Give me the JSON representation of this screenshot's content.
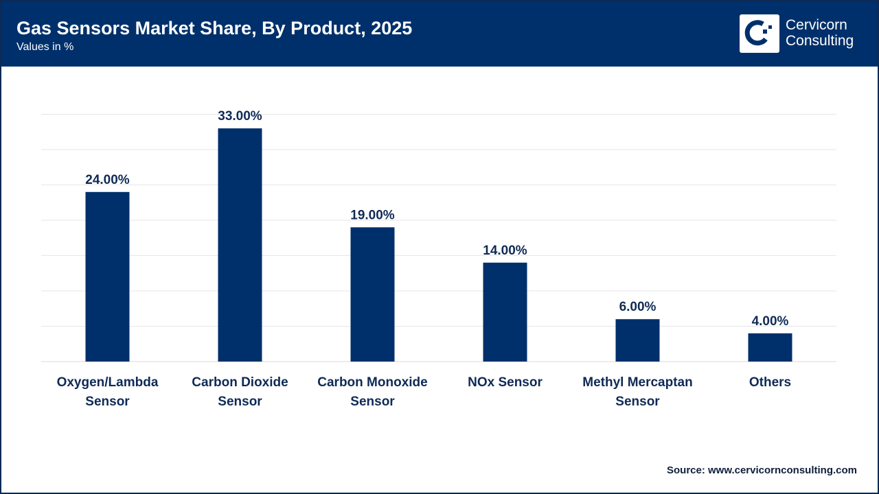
{
  "header": {
    "title": "Gas Sensors Market Share, By Product, 2025",
    "subtitle": "Values in %",
    "logo": {
      "line1": "Cervicorn",
      "line2": "Consulting"
    }
  },
  "source": "Source: www.cervicornconsulting.com",
  "colors": {
    "header": "#00306b",
    "bar": "#00306b",
    "grid": "#e6e6e6"
  },
  "chart_data": {
    "type": "bar",
    "categories": [
      [
        "Oxygen/Lambda",
        "Sensor"
      ],
      [
        "Carbon Dioxide",
        "Sensor"
      ],
      [
        "Carbon Monoxide",
        "Sensor"
      ],
      [
        "NOx Sensor"
      ],
      [
        "Methyl Mercaptan",
        "Sensor"
      ],
      [
        "Others"
      ]
    ],
    "values": [
      24,
      33,
      19,
      14,
      6,
      4
    ],
    "data_labels": [
      "24.00%",
      "33.00%",
      "19.00%",
      "14.00%",
      "6.00%",
      "4.00%"
    ],
    "title": "Gas Sensors Market Share, By Product, 2025",
    "ylabel": "",
    "xlabel": "",
    "ylim": [
      0,
      35
    ],
    "grid": true,
    "y_tick_step": 5
  }
}
